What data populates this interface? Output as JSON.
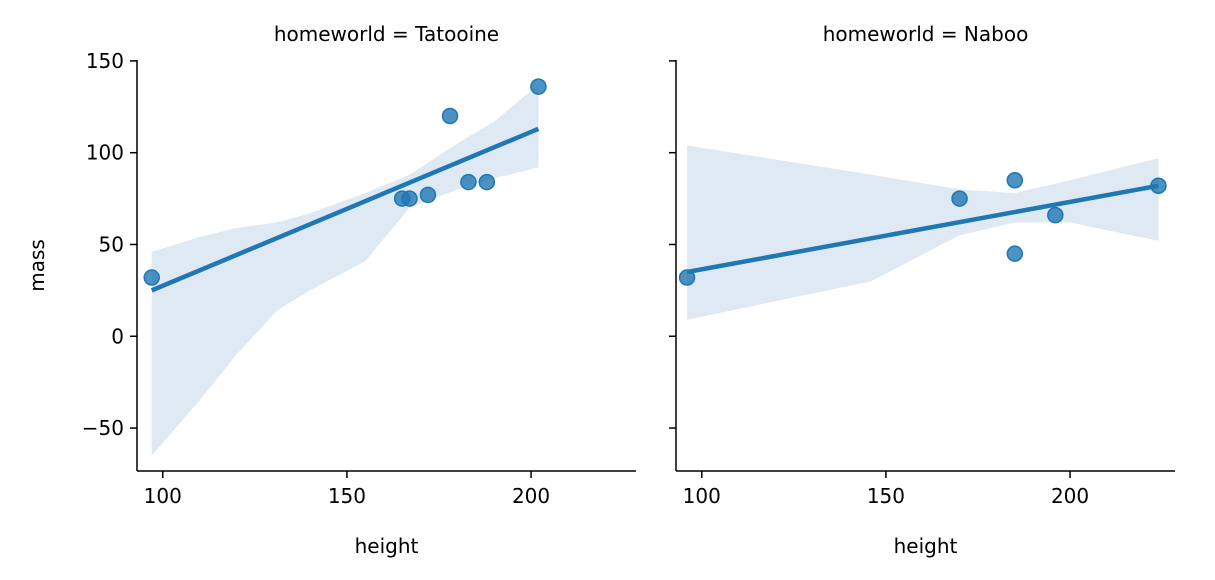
{
  "chart_data": [
    {
      "type": "scatter",
      "title": "homeworld = Tatooine",
      "xlabel": "height",
      "ylabel": "mass",
      "xlim": [
        93,
        228.5
      ],
      "ylim": [
        -73.4,
        150.5
      ],
      "xticks": [
        100,
        150,
        200
      ],
      "yticks": [
        -50,
        0,
        50,
        100,
        150
      ],
      "ytick_labels": [
        "−50",
        "0",
        "50",
        "100",
        "150"
      ],
      "points": {
        "x": [
          97,
          165,
          167,
          172,
          178,
          183,
          188,
          202
        ],
        "y": [
          32,
          75,
          75,
          77,
          120,
          84,
          84,
          136
        ]
      },
      "regression": {
        "x": [
          97,
          202
        ],
        "y": [
          25,
          113
        ]
      },
      "ci_band": {
        "x": [
          97,
          110,
          120,
          131,
          140,
          155,
          167,
          180,
          190,
          202
        ],
        "upper": [
          46,
          54,
          59,
          62,
          67,
          78,
          88,
          105,
          117,
          137
        ],
        "lower": [
          -65,
          -35,
          -10,
          14,
          25,
          41,
          70,
          80,
          86,
          92
        ]
      }
    },
    {
      "type": "scatter",
      "title": "homeworld = Naboo",
      "xlabel": "height",
      "ylabel": "",
      "xlim": [
        93,
        228.5
      ],
      "ylim": [
        -73.4,
        150.5
      ],
      "xticks": [
        100,
        150,
        200
      ],
      "yticks": [
        -50,
        0,
        50,
        100,
        150
      ],
      "points": {
        "x": [
          96,
          170,
          185,
          185,
          196,
          224
        ],
        "y": [
          32,
          75,
          85,
          45,
          66,
          82
        ]
      },
      "regression": {
        "x": [
          96,
          224
        ],
        "y": [
          35,
          82
        ]
      },
      "ci_band": {
        "x": [
          96,
          146,
          170,
          185,
          200,
          224
        ],
        "upper": [
          104,
          88,
          80,
          78,
          85,
          97
        ],
        "lower": [
          9,
          30,
          55,
          62,
          62,
          52
        ]
      }
    }
  ],
  "colors": {
    "series": "#1f77b4",
    "band": "#dee9f3"
  }
}
